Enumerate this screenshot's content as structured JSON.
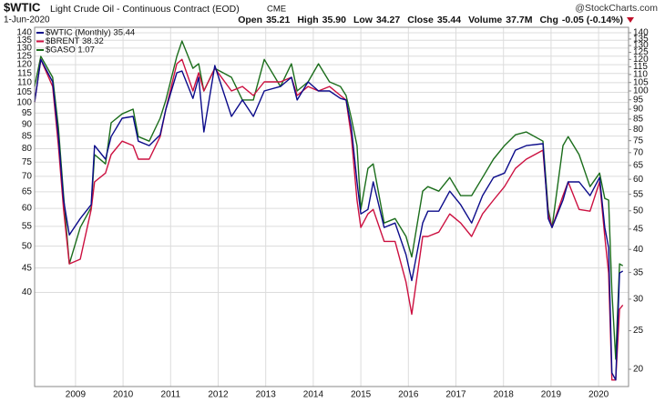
{
  "chart_data": {
    "type": "line",
    "title": "$WTIC",
    "subtitle": "Light Crude Oil - Continuous Contract (EOD)",
    "exchange": "CME",
    "source": "@StockCharts.com",
    "date": "1-Jun-2020",
    "quote": [
      {
        "label": "Open",
        "value": "35.21"
      },
      {
        "label": "High",
        "value": "35.90"
      },
      {
        "label": "Low",
        "value": "34.27"
      },
      {
        "label": "Close",
        "value": "35.44"
      },
      {
        "label": "Volume",
        "value": "37.7M"
      },
      {
        "label": "Chg",
        "value": "-0.05 (-0.14%)"
      }
    ],
    "log_scale": true,
    "grid": true,
    "legend": "top-left",
    "xlim": [
      2008.14,
      2020.63
    ],
    "xticks": [
      2009,
      2010,
      2011,
      2012,
      2013,
      2014,
      2015,
      2016,
      2017,
      2018,
      2019,
      2020
    ],
    "ylim": [
      25.4,
      143.7
    ],
    "yticks": [
      140,
      135,
      130,
      125,
      120,
      115,
      110,
      105,
      100,
      95,
      90,
      85,
      80,
      75,
      70,
      65,
      60,
      55,
      50,
      45,
      40
    ],
    "y2lim": [
      18.1,
      144.5
    ],
    "y2ticks": [
      140,
      135,
      130,
      125,
      120,
      115,
      110,
      105,
      100,
      95,
      90,
      85,
      80,
      75,
      70,
      65,
      60,
      55,
      50,
      45,
      40,
      35,
      30,
      25,
      20
    ],
    "x": [
      2008.14,
      2008.27,
      2008.52,
      2008.64,
      2008.75,
      2008.87,
      2009.1,
      2009.33,
      2009.4,
      2009.63,
      2009.75,
      2009.98,
      2010.21,
      2010.32,
      2010.55,
      2010.78,
      2010.9,
      2011.13,
      2011.24,
      2011.47,
      2011.59,
      2011.7,
      2011.93,
      2012.28,
      2012.51,
      2012.74,
      2012.97,
      2013.31,
      2013.54,
      2013.66,
      2013.89,
      2014.11,
      2014.34,
      2014.57,
      2014.69,
      2014.8,
      2014.92,
      2015.0,
      2015.15,
      2015.26,
      2015.49,
      2015.72,
      2015.95,
      2016.07,
      2016.3,
      2016.41,
      2016.64,
      2016.87,
      2017.1,
      2017.33,
      2017.56,
      2017.79,
      2018.02,
      2018.25,
      2018.48,
      2018.83,
      2018.94,
      2019.02,
      2019.25,
      2019.36,
      2019.59,
      2019.82,
      2020.02,
      2020.13,
      2020.21,
      2020.28,
      2020.36,
      2020.44,
      2020.51
    ],
    "series": [
      {
        "name": "$WTIC (Monthly) 35.44",
        "color": "#0b0b8a",
        "axis": "y2",
        "values": [
          93.8,
          120,
          105.4,
          76.8,
          53.2,
          43.5,
          47.8,
          51.8,
          72.9,
          67.4,
          76.8,
          85.4,
          86.3,
          74.8,
          72.9,
          77.6,
          90,
          111.1,
          112.2,
          95.8,
          108.2,
          78.9,
          115.8,
          86.3,
          94.9,
          86.3,
          100,
          102.6,
          108.2,
          94.9,
          105.4,
          100,
          100,
          95.8,
          94.9,
          81,
          59.1,
          49.1,
          50.4,
          59.1,
          45.4,
          46.6,
          38.8,
          33.4,
          46.6,
          49.9,
          49.9,
          56,
          51.8,
          46.6,
          54.6,
          60.6,
          62.2,
          71,
          72.9,
          73.7,
          47.8,
          45.4,
          53.2,
          59.1,
          59.1,
          54.6,
          60.6,
          45.4,
          40.4,
          19.6,
          18.8,
          34.9,
          35.3
        ]
      },
      {
        "name": "$BRENT 38.32",
        "color": "#cc1040",
        "axis": "y2",
        "values": [
          93.8,
          120,
          102.6,
          72.9,
          50.4,
          36.8,
          37.8,
          50.4,
          59.1,
          62.2,
          69.2,
          74.8,
          72.9,
          67.4,
          67.4,
          76.8,
          90,
          117,
          120,
          100,
          111.1,
          100,
          114,
          100,
          102.6,
          97.4,
          105.4,
          105.4,
          108.2,
          97.4,
          102.6,
          100,
          102.6,
          97.4,
          94.9,
          76.8,
          53.2,
          45.4,
          49.1,
          50.4,
          41.9,
          41.9,
          33.1,
          27.5,
          43.1,
          43.1,
          44.2,
          49.1,
          46.6,
          43.1,
          49.1,
          53.2,
          57.5,
          63.9,
          67.4,
          71,
          49.1,
          45.4,
          54.6,
          59.1,
          50.4,
          49.9,
          59.1,
          43.1,
          34.9,
          18.8,
          18.8,
          28.3,
          29
        ]
      },
      {
        "name": "$GASO 1.07",
        "color": "#1b6d1b",
        "axis": "y2",
        "values": [
          102.6,
          122.1,
          108.2,
          81,
          54.6,
          36.8,
          45.4,
          51,
          69.2,
          65.6,
          83.2,
          87.6,
          90,
          76.8,
          74.8,
          85.4,
          94.9,
          122.1,
          133.5,
          114,
          117,
          100,
          114,
          108.2,
          94.9,
          94.9,
          120,
          102.6,
          117,
          100,
          105.4,
          117,
          105.4,
          102.6,
          97.4,
          85.4,
          72.9,
          50.4,
          63.9,
          65.6,
          46.6,
          47.8,
          43.1,
          38.3,
          56,
          57.5,
          56,
          60.6,
          54.6,
          54.6,
          60.6,
          67.4,
          72.9,
          77.6,
          78.9,
          74.8,
          50.4,
          45.4,
          72.9,
          76.8,
          69.2,
          57.5,
          62.2,
          53.7,
          53.2,
          31.4,
          21.2,
          36.8,
          36.4
        ]
      }
    ]
  }
}
